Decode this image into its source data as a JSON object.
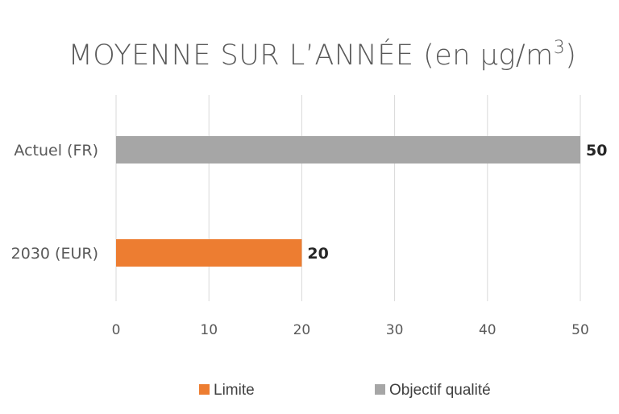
{
  "chart_data": {
    "type": "bar",
    "orientation": "horizontal",
    "title": "MOYENNE SUR L’ANNÉE (en µg/m",
    "title_superscript": "3",
    "title_close": ")",
    "categories": [
      "Actuel (FR)",
      "2030 (EUR)"
    ],
    "series": [
      {
        "name": "Objectif qualité",
        "color": "#a6a6a6",
        "values": [
          50,
          null
        ]
      },
      {
        "name": "Limite",
        "color": "#ed7d31",
        "values": [
          null,
          20
        ]
      }
    ],
    "data_labels": [
      "50",
      "20"
    ],
    "xlim": [
      0,
      50
    ],
    "xticks": [
      0,
      10,
      20,
      30,
      40,
      50
    ],
    "xtick_labels": [
      "0",
      "10",
      "20",
      "30",
      "40",
      "50"
    ],
    "grid": true,
    "legend": {
      "position": "bottom",
      "entries": [
        {
          "label": "Limite",
          "color": "#ed7d31"
        },
        {
          "label": "Objectif qualité",
          "color": "#a6a6a6"
        }
      ]
    }
  }
}
